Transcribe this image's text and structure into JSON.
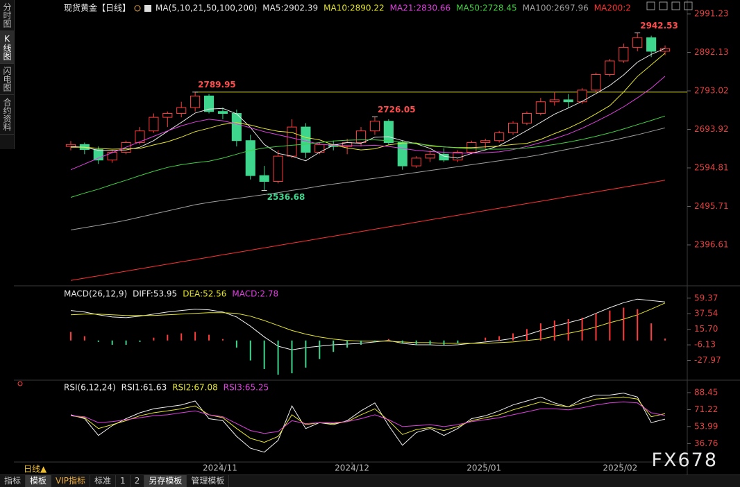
{
  "sidebar": [
    "分时图",
    "K线图",
    "闪电图",
    "合约资料"
  ],
  "period": "日线▲",
  "tabs": [
    "指标",
    "模板",
    "VIP指标",
    "标准",
    "1",
    "2",
    "另存模板",
    "管理模板"
  ],
  "watermark": "FX678",
  "chart_data": [
    {
      "type": "candlestick",
      "title": "现货黄金【日线】",
      "indicator": "MA(5,10,21,50,100,200)",
      "xlim": [
        -0.5,
        43.5
      ],
      "ylim": [
        2298.4,
        3012.7
      ],
      "yticks": [
        2991.23,
        2892.13,
        2793.02,
        2693.92,
        2594.81,
        2495.71,
        2396.61
      ],
      "up_color": "#ff3b3b",
      "down_color": "#3dd68c",
      "open": [
        2650,
        2655,
        2642,
        2615,
        2635,
        2660,
        2690,
        2725,
        2735,
        2750,
        2780,
        2740,
        2735,
        2665,
        2575,
        2560,
        2625,
        2700,
        2635,
        2655,
        2650,
        2660,
        2690,
        2715,
        2660,
        2600,
        2620,
        2630,
        2615,
        2635,
        2660,
        2665,
        2685,
        2710,
        2735,
        2765,
        2770,
        2765,
        2795,
        2835,
        2870,
        2905,
        2930,
        2895
      ],
      "high": [
        2664,
        2660,
        2650,
        2640,
        2665,
        2700,
        2735,
        2740,
        2765,
        2789.95,
        2785,
        2750,
        2745,
        2680,
        2600,
        2640,
        2720,
        2710,
        2660,
        2665,
        2670,
        2700,
        2726.05,
        2720,
        2665,
        2625,
        2640,
        2645,
        2640,
        2665,
        2670,
        2690,
        2715,
        2740,
        2775,
        2790,
        2785,
        2800,
        2840,
        2875,
        2915,
        2942.53,
        2935,
        2910
      ],
      "low": [
        2640,
        2630,
        2605,
        2608,
        2630,
        2655,
        2685,
        2700,
        2725,
        2740,
        2735,
        2720,
        2650,
        2565,
        2536.68,
        2555,
        2620,
        2620,
        2630,
        2640,
        2630,
        2650,
        2680,
        2655,
        2590,
        2595,
        2610,
        2610,
        2610,
        2630,
        2645,
        2660,
        2680,
        2705,
        2730,
        2755,
        2750,
        2760,
        2790,
        2830,
        2865,
        2895,
        2880,
        2885
      ],
      "close": [
        2655,
        2642,
        2615,
        2635,
        2660,
        2690,
        2725,
        2735,
        2750,
        2780,
        2740,
        2735,
        2665,
        2575,
        2560,
        2625,
        2700,
        2635,
        2655,
        2650,
        2660,
        2690,
        2715,
        2660,
        2600,
        2620,
        2630,
        2615,
        2635,
        2660,
        2665,
        2685,
        2710,
        2735,
        2765,
        2770,
        2765,
        2795,
        2835,
        2870,
        2905,
        2930,
        2895,
        2902
      ],
      "hline": {
        "value": 2789.95,
        "from": 9,
        "color": "#e8e84a"
      },
      "annotations": [
        {
          "x": 9,
          "y": 2789.95,
          "color": "#ff4b4b",
          "pos": "above"
        },
        {
          "x": 22,
          "y": 2726.05,
          "color": "#ff4b4b",
          "pos": "above"
        },
        {
          "x": 41,
          "y": 2942.53,
          "color": "#ff4b4b",
          "pos": "above"
        },
        {
          "x": 14,
          "y": 2536.68,
          "color": "#3dd68c",
          "pos": "below"
        }
      ],
      "series": [
        {
          "name": "MA5:2902.39",
          "color": "#e6e6e6",
          "values": [
            2650,
            2648,
            2640,
            2640,
            2641,
            2648,
            2665,
            2689,
            2712,
            2736,
            2746,
            2748,
            2734,
            2699,
            2655,
            2632,
            2625,
            2613,
            2635,
            2653,
            2660,
            2658,
            2674,
            2675,
            2665,
            2657,
            2645,
            2625,
            2620,
            2632,
            2641,
            2652,
            2671,
            2691,
            2712,
            2733,
            2749,
            2766,
            2786,
            2807,
            2834,
            2867,
            2887,
            2902.39
          ]
        },
        {
          "name": "MA10:2890.22",
          "color": "#e6e62a",
          "values": [
            2648,
            2648,
            2645,
            2643,
            2644,
            2645,
            2654,
            2662,
            2674,
            2688,
            2697,
            2707,
            2711,
            2705,
            2696,
            2689,
            2686,
            2673,
            2667,
            2654,
            2646,
            2641,
            2644,
            2654,
            2659,
            2659,
            2651,
            2649,
            2647,
            2647,
            2649,
            2651,
            2655,
            2658,
            2668,
            2683,
            2697,
            2714,
            2734,
            2755,
            2790,
            2830,
            2860,
            2890.22
          ]
        },
        {
          "name": "MA21:2830.66",
          "color": "#e040e0",
          "values": [
            2590,
            2605,
            2620,
            2634,
            2648,
            2662,
            2676,
            2690,
            2703,
            2713,
            2720,
            2716,
            2708,
            2698,
            2688,
            2680,
            2672,
            2664,
            2656,
            2653,
            2652,
            2652,
            2653,
            2650,
            2645,
            2640,
            2637,
            2635,
            2633,
            2633,
            2634,
            2636,
            2642,
            2650,
            2660,
            2670,
            2682,
            2697,
            2714,
            2732,
            2752,
            2775,
            2800,
            2830.66
          ]
        },
        {
          "name": "MA50:2728.45",
          "color": "#40d040",
          "values": [
            2519,
            2530,
            2540,
            2552,
            2563,
            2575,
            2586,
            2596,
            2603,
            2608,
            2612,
            2620,
            2630,
            2640,
            2646,
            2650,
            2653,
            2656,
            2660,
            2664,
            2666,
            2667,
            2667,
            2665,
            2661,
            2657,
            2653,
            2649,
            2646,
            2644,
            2643,
            2643,
            2644,
            2646,
            2650,
            2655,
            2661,
            2668,
            2676,
            2685,
            2695,
            2706,
            2717,
            2728.45
          ]
        },
        {
          "name": "MA100:2697.96",
          "color": "#a0a0a0",
          "values": [
            2435,
            2441,
            2447,
            2453,
            2460,
            2468,
            2476,
            2484,
            2492,
            2500,
            2506,
            2511,
            2516,
            2521,
            2526,
            2531,
            2537,
            2542,
            2548,
            2553,
            2558,
            2563,
            2568,
            2573,
            2578,
            2583,
            2588,
            2593,
            2598,
            2603,
            2608,
            2613,
            2618,
            2623,
            2629,
            2636,
            2643,
            2650,
            2657,
            2664,
            2672,
            2680,
            2689,
            2697.96
          ]
        },
        {
          "name": "MA200:2",
          "color": "#ff3030",
          "values": [
            2305,
            2311,
            2317,
            2323,
            2329,
            2335,
            2341,
            2347,
            2353,
            2359,
            2365,
            2371,
            2377,
            2383,
            2389,
            2395,
            2401,
            2407,
            2413,
            2419,
            2425,
            2431,
            2437,
            2443,
            2449,
            2455,
            2461,
            2467,
            2473,
            2479,
            2485,
            2491,
            2497,
            2503,
            2509,
            2515,
            2521,
            2527,
            2533,
            2539,
            2545,
            2551,
            2557,
            2563
          ]
        }
      ]
    },
    {
      "type": "macd",
      "title": "MACD(26,12,9)",
      "xlim": [
        -0.5,
        43.5
      ],
      "ylim": [
        -52.7,
        68.86
      ],
      "yticks": [
        59.37,
        37.54,
        {
          "value": 15.7,
          "label": "15.70"
        },
        -6.13,
        -27.97
      ],
      "up_color": "#ff3b3b",
      "down_color": "#3dd68c",
      "series": [
        {
          "name": "DIFF:53.95",
          "color": "#f0f0f0",
          "values": [
            42,
            40,
            36,
            33,
            32,
            34,
            37,
            40,
            42,
            44,
            43,
            40,
            33,
            20,
            5,
            -8,
            -13,
            -10,
            -8,
            -6,
            -5,
            -4,
            -2,
            0,
            -4,
            -6,
            -6,
            -7,
            -6,
            -4,
            -2,
            0,
            3,
            8,
            14,
            20,
            25,
            30,
            38,
            46,
            53,
            58,
            56,
            53.95
          ]
        },
        {
          "name": "DEA:52.56",
          "color": "#e6e62a",
          "values": [
            36,
            37,
            37,
            36,
            35,
            35,
            35,
            36,
            37,
            38,
            39,
            39,
            38,
            34,
            28,
            21,
            14,
            9,
            5,
            2,
            0,
            -1,
            -1,
            -1,
            -2,
            -3,
            -3,
            -4,
            -4,
            -4,
            -4,
            -3,
            -2,
            0,
            2,
            6,
            10,
            14,
            19,
            25,
            30,
            36,
            44,
            52.56
          ]
        },
        {
          "name": "MACD:2.78",
          "color": "#e040e0",
          "style": "bar",
          "values": [
            12,
            6,
            -2,
            -6,
            -6,
            -2,
            4,
            8,
            10,
            12,
            8,
            2,
            -10,
            -28,
            -40,
            -48,
            -46,
            -38,
            -26,
            -16,
            -10,
            -6,
            -2,
            2,
            -4,
            -6,
            -6,
            -6,
            -4,
            0,
            4,
            6,
            10,
            16,
            24,
            28,
            30,
            32,
            38,
            42,
            46,
            44,
            24,
            2.78
          ]
        }
      ]
    },
    {
      "type": "line",
      "title": "RSI(6,12,24)",
      "xlim": [
        -0.5,
        43.5
      ],
      "ylim": [
        18.7,
        96.2
      ],
      "yticks": [
        88.45,
        71.22,
        53.99,
        36.76
      ],
      "xticks": [
        {
          "value": 10.8,
          "label": "2024/11"
        },
        {
          "value": 20.35,
          "label": "2024/12"
        },
        {
          "value": 29.9,
          "label": "2025/01"
        },
        {
          "value": 39.75,
          "label": "2025/02"
        }
      ],
      "series": [
        {
          "name": "RSI1:61.63",
          "color": "#f0f0f0",
          "values": [
            66,
            62,
            45,
            55,
            62,
            68,
            72,
            74,
            76,
            80,
            62,
            60,
            44,
            32,
            28,
            40,
            75,
            52,
            58,
            56,
            60,
            70,
            78,
            55,
            35,
            48,
            52,
            45,
            52,
            62,
            65,
            70,
            76,
            80,
            84,
            78,
            74,
            82,
            86,
            86,
            88,
            84,
            58,
            61.63
          ]
        },
        {
          "name": "RSI2:67.08",
          "color": "#e6e62a",
          "values": [
            65,
            63,
            52,
            56,
            60,
            65,
            68,
            70,
            72,
            75,
            66,
            63,
            52,
            42,
            38,
            44,
            66,
            56,
            58,
            57,
            59,
            66,
            72,
            60,
            46,
            51,
            53,
            50,
            54,
            60,
            63,
            66,
            71,
            75,
            79,
            76,
            74,
            78,
            82,
            83,
            84,
            82,
            64,
            67.08
          ]
        },
        {
          "name": "RSI3:65.25",
          "color": "#e040e0",
          "values": [
            65,
            64,
            58,
            59,
            61,
            63,
            65,
            66,
            68,
            70,
            66,
            64,
            57,
            50,
            47,
            49,
            60,
            57,
            58,
            58,
            59,
            62,
            66,
            61,
            54,
            55,
            56,
            54,
            56,
            59,
            61,
            63,
            66,
            69,
            72,
            72,
            71,
            73,
            76,
            78,
            79,
            78,
            68,
            65.25
          ]
        }
      ]
    }
  ]
}
